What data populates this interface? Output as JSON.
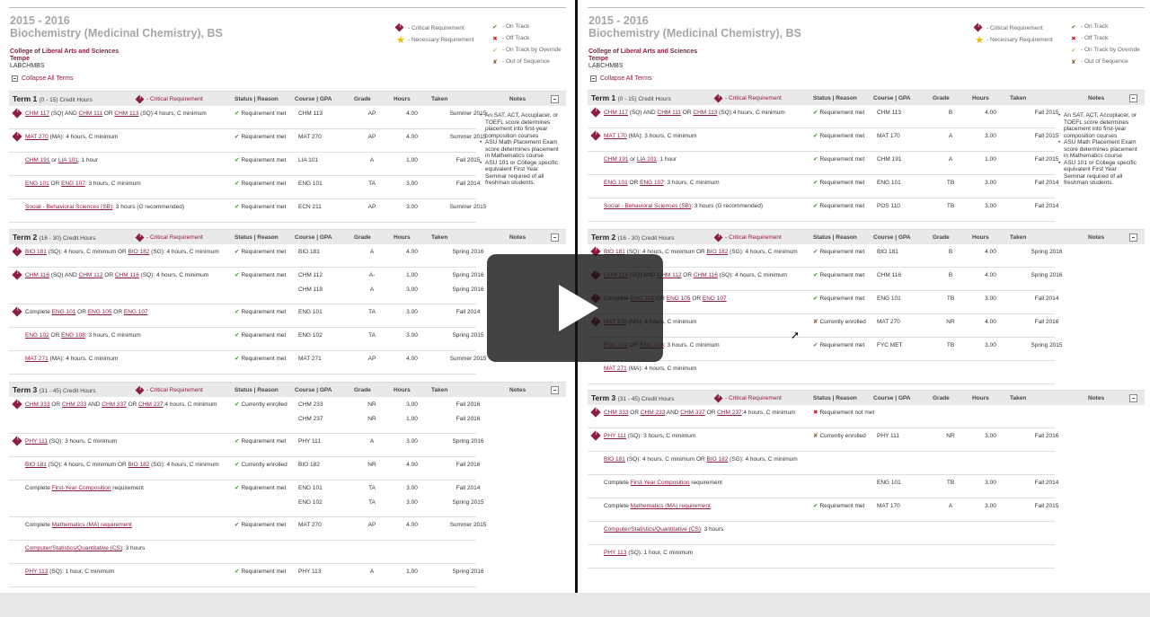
{
  "legend": {
    "critical": "- Critical Requirement",
    "necessary": "- Necessary Requirement",
    "on_track": "- On Track",
    "off_track": "- Off Track",
    "override": "- On Track by Override",
    "sequence": "- Out of Sequence"
  },
  "headers": {
    "status": "Status | Reason",
    "course": "Course | GPA",
    "grade": "Grade",
    "hours": "Hours",
    "taken": "Taken",
    "notes": "Notes",
    "critical": "- Critical Requirement"
  },
  "left": {
    "year": "2015 - 2016",
    "program": "Biochemistry (Medicinal Chemistry), BS",
    "college": "College of Liberal Arts and Sciences",
    "campus": "Tempe",
    "code": "LABCHMBS",
    "collapse": "Collapse All Terms",
    "notes": [
      "An SAT, ACT, Accuplacer, or TOEFL score determines placement into first-year composition courses",
      "ASU Math Placement Exam score determines placement in Mathematics course",
      "ASU 101 or College specific equivalent First Year Seminar required of all freshman students."
    ],
    "terms": [
      {
        "title": "Term 1",
        "range": "(0 - 15) Credit Hours",
        "rows": [
          {
            "req": "CHM 117 (SQ) AND CHM 111 OR CHM 113 (SQ):4 hours, C minimum",
            "status": "Requirement met",
            "cells": [
              [
                "CHM 113",
                "AP",
                "4.00",
                "Summer 2015"
              ]
            ]
          },
          {
            "req": "MAT 270 (MA): 4 hours, C minimum",
            "status": "Requirement met",
            "cells": [
              [
                "MAT 270",
                "AP",
                "4.00",
                "Summer 2015"
              ]
            ]
          },
          {
            "req": "CHM 191 or LIA 101: 1 hour",
            "status": "Requirement met",
            "cells": [
              [
                "LIA 101",
                "A",
                "1.00",
                "Fall 2015"
              ]
            ]
          },
          {
            "req": "ENG 101 OR ENG 107: 3 hours, C minimum",
            "status": "Requirement met",
            "cells": [
              [
                "ENG 101",
                "TA",
                "3.00",
                "Fall 2014"
              ]
            ]
          },
          {
            "req": "Social - Behavioral Sciences (SB): 3 hours (G recommended)",
            "status": "Requirement met",
            "cells": [
              [
                "ECN 211",
                "AP",
                "3.00",
                "Summer 2015"
              ]
            ]
          }
        ]
      },
      {
        "title": "Term 2",
        "range": "(16 - 30) Credit Hours",
        "rows": [
          {
            "req": "BIO 181 (SQ): 4 hours, C minimum OR BIO 182 (SG): 4 hours, C minimum",
            "status": "Requirement met",
            "cells": [
              [
                "BIO 181",
                "A",
                "4.00",
                "Spring 2016"
              ]
            ]
          },
          {
            "req": "CHM 116 (SQ) AND CHM 112 OR CHM 116 (SQ): 4 hours, C minimum",
            "status": "Requirement met",
            "cells": [
              [
                "CHM 112",
                "A-",
                "1.00",
                "Spring 2016"
              ],
              [
                "CHM 118",
                "A",
                "3.00",
                "Spring 2016"
              ]
            ]
          },
          {
            "req": "Complete ENG 101 OR ENG 105 OR ENG 107",
            "status": "Requirement met",
            "cells": [
              [
                "ENG 101",
                "TA",
                "3.00",
                "Fall 2014"
              ]
            ]
          },
          {
            "req": "ENG 102 OR ENG 108: 3 hours, C minimum",
            "status": "Requirement met",
            "cells": [
              [
                "ENG 102",
                "TA",
                "3.00",
                "Spring 2015"
              ]
            ]
          },
          {
            "req": "MAT 271 (MA): 4 hours, C minimum",
            "status": "Requirement met",
            "cells": [
              [
                "MAT 271",
                "AP",
                "4.00",
                "Summer 2015"
              ]
            ]
          }
        ]
      },
      {
        "title": "Term 3",
        "range": "(31 - 45) Credit Hours",
        "rows": [
          {
            "req": "CHM 333 OR CHM 233 AND CHM 337 OR CHM 237:4 hours, C minimum",
            "status": "Currently enrolled",
            "cells": [
              [
                "CHM 233",
                "NR",
                "3.00",
                "Fall 2016"
              ],
              [
                "CHM 237",
                "NR",
                "1.00",
                "Fall 2016"
              ]
            ]
          },
          {
            "req": "PHY 111 (SQ): 3 hours, C minimum",
            "status": "Requirement met",
            "cells": [
              [
                "PHY 111",
                "A",
                "3.00",
                "Spring 2016"
              ]
            ]
          },
          {
            "req": "BIO 181 (SQ): 4 hours, C minimum OR BIO 182 (SG): 4 hours, C minimum",
            "status": "Currently enrolled",
            "cells": [
              [
                "BIO 182",
                "NR",
                "4.00",
                "Fall 2016"
              ]
            ]
          },
          {
            "req": "Complete First-Year Composition requirement",
            "status": "Requirement met",
            "cells": [
              [
                "ENG 101",
                "TA",
                "3.00",
                "Fall 2014"
              ],
              [
                "ENG 102",
                "TA",
                "3.00",
                "Spring 2015"
              ]
            ]
          },
          {
            "req": "Complete Mathematics (MA) requirement",
            "status": "Requirement met",
            "cells": [
              [
                "MAT 270",
                "AP",
                "4.00",
                "Summer 2015"
              ]
            ]
          },
          {
            "req": "Computer/Statistics/Quantitative (CS): 3 hours",
            "status": "",
            "cells": []
          },
          {
            "req": "PHY 113 (SQ): 1 hour, C minimum",
            "status": "Requirement met",
            "cells": [
              [
                "PHY 113",
                "A",
                "1.00",
                "Spring 2016"
              ]
            ]
          }
        ]
      }
    ]
  },
  "right": {
    "year": "2015 - 2016",
    "program": "Biochemistry (Medicinal Chemistry), BS",
    "college": "College of Liberal Arts and Sciences",
    "campus": "Tempe",
    "code": "LABCHMBS",
    "collapse": "Collapse All Terms",
    "notes": [
      "An SAT, ACT, Accuplacer, or TOEFL score determines placement into first-year composition courses",
      "ASU Math Placement Exam score determines placement in Mathematics course",
      "ASU 101 or College specific equivalent First Year Seminar required of all freshman students."
    ],
    "terms": [
      {
        "title": "Term 1",
        "range": "(0 - 15) Credit Hours",
        "rows": [
          {
            "req": "CHM 117 (SQ) AND CHM 111 OR CHM 113 (SQ):4 hours, C minimum",
            "status": "Requirement met",
            "cells": [
              [
                "CHM 113",
                "B",
                "4.00",
                "Fall 2015"
              ]
            ]
          },
          {
            "req": "MAT 170 (MA): 3 hours, C minimum",
            "status": "Requirement met",
            "cells": [
              [
                "MAT 170",
                "A",
                "3.00",
                "Fall 2015"
              ]
            ]
          },
          {
            "req": "CHM 191 or LIA 101: 1 hour",
            "status": "Requirement met",
            "cells": [
              [
                "CHM 191",
                "A",
                "1.00",
                "Fall 2015"
              ]
            ]
          },
          {
            "req": "ENG 101 OR ENG 107: 3 hours, C minimum",
            "status": "Requirement met",
            "cells": [
              [
                "ENG 101",
                "TB",
                "3.00",
                "Fall 2014"
              ]
            ]
          },
          {
            "req": "Social - Behavioral Sciences (SB): 3 hours (G recommended)",
            "status": "Requirement met",
            "cells": [
              [
                "POS 110",
                "TB",
                "3.00",
                "Fall 2014"
              ]
            ]
          }
        ]
      },
      {
        "title": "Term 2",
        "range": "(16 - 30) Credit Hours",
        "rows": [
          {
            "req": "BIO 181 (SQ): 4 hours, C minimum OR BIO 182 (SG): 4 hours, C minimum",
            "status": "Requirement met",
            "cells": [
              [
                "BIO 181",
                "B",
                "4.00",
                "Spring 2016"
              ]
            ]
          },
          {
            "req": "CHM 116 (SQ) AND CHM 112 OR CHM 116 (SQ): 4 hours, C minimum",
            "status": "Requirement met",
            "cells": [
              [
                "CHM 116",
                "B",
                "4.00",
                "Spring 2016"
              ]
            ]
          },
          {
            "req": "Complete ENG 101 OR ENG 105 OR ENG 107",
            "status": "Requirement met",
            "cells": [
              [
                "ENG 101",
                "TB",
                "3.00",
                "Fall 2014"
              ]
            ]
          },
          {
            "req": "MAT 270 (MA): 4 hours, C minimum",
            "status": "Currently enrolled",
            "cells": [
              [
                "MAT 270",
                "NR",
                "4.00",
                "Fall 2016"
              ]
            ]
          },
          {
            "req": "ENG 102 OR ENG 108: 3 hours, C minimum",
            "status": "Requirement met",
            "cells": [
              [
                "FYC MET",
                "TB",
                "3.00",
                "Spring 2015"
              ]
            ]
          },
          {
            "req": "MAT 271 (MA): 4 hours, C minimum",
            "status": "",
            "cells": []
          }
        ]
      },
      {
        "title": "Term 3",
        "range": "(31 - 45) Credit Hours",
        "rows": [
          {
            "req": "CHM 333 OR CHM 233 AND CHM 337 OR CHM 237:4 hours, C minimum",
            "status": "Requirement not met",
            "cells": []
          },
          {
            "req": "PHY 111 (SQ): 3 hours, C minimum",
            "status": "Currently enrolled",
            "cells": [
              [
                "PHY 111",
                "NR",
                "3.00",
                "Fall 2016"
              ]
            ]
          },
          {
            "req": "BIO 181 (SQ): 4 hours, C minimum OR BIO 182 (SG): 4 hours, C minimum",
            "status": "",
            "cells": []
          },
          {
            "req": "Complete First-Year Composition requirement",
            "status": "",
            "cells": [
              [
                "ENG 101",
                "TB",
                "3.00",
                "Fall 2014"
              ]
            ]
          },
          {
            "req": "Complete Mathematics (MA) requirement",
            "status": "Requirement met",
            "cells": [
              [
                "MAT 170",
                "A",
                "3.00",
                "Fall 2015"
              ]
            ]
          },
          {
            "req": "Computer/Statistics/Quantitative (CS): 3 hours",
            "status": "",
            "cells": []
          },
          {
            "req": "PHY 113 (SQ): 1 hour, C minimum",
            "status": "",
            "cells": []
          }
        ]
      }
    ]
  }
}
